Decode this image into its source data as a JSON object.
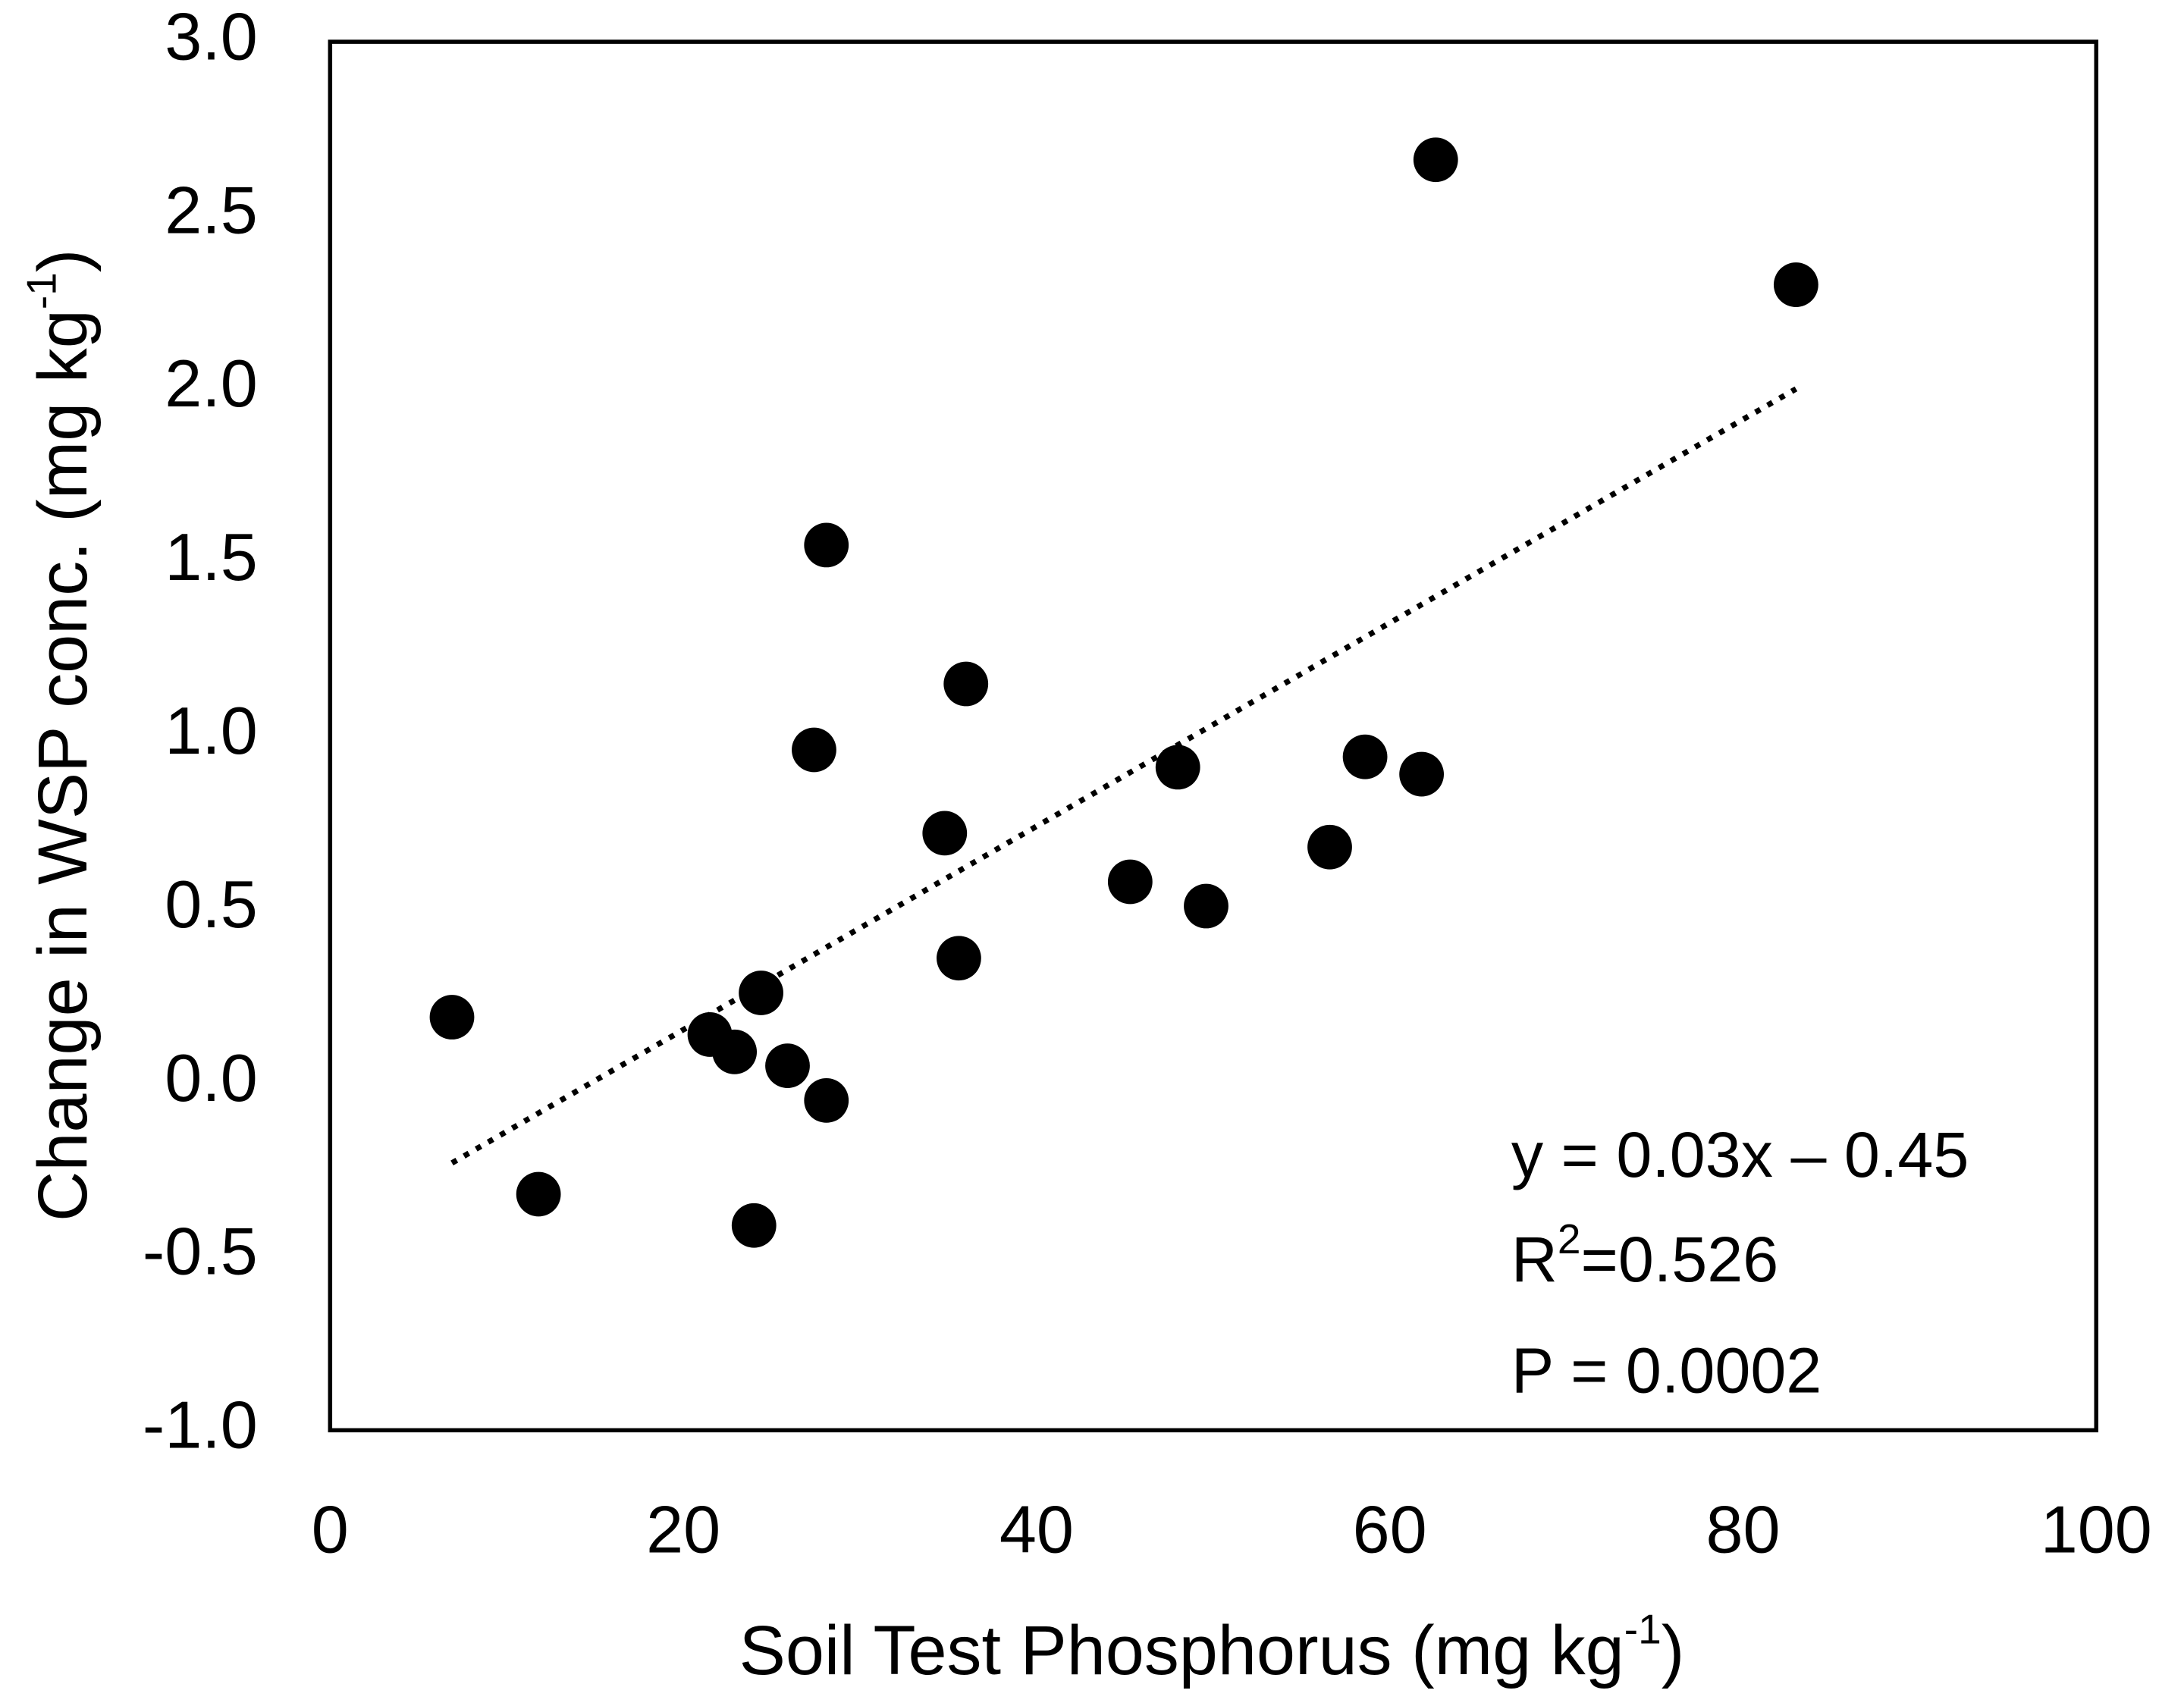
{
  "chart_data": {
    "type": "scatter",
    "x_label": [
      "Soil Test Phosphorus (mg kg",
      "-1",
      ")"
    ],
    "y_label": [
      "Change in WSP conc. (mg kg",
      "-1",
      ")"
    ],
    "x": [
      6.9,
      11.8,
      21.5,
      22.9,
      24.4,
      24.0,
      25.9,
      28.1,
      28.1,
      27.4,
      34.8,
      36.0,
      35.6,
      45.3,
      48.0,
      49.6,
      56.6,
      58.6,
      61.8,
      62.6,
      83.0
    ],
    "values": [
      0.19,
      -0.32,
      0.14,
      0.09,
      0.26,
      -0.41,
      0.05,
      -0.05,
      1.55,
      0.96,
      0.72,
      1.15,
      0.36,
      0.58,
      0.91,
      0.51,
      0.68,
      0.94,
      0.89,
      2.66,
      2.3
    ],
    "color": "#000000",
    "trendline": {
      "x": [
        6.9,
        83.0
      ],
      "y": [
        -0.23,
        2.0
      ]
    },
    "annotations": {
      "equation": "y = 0.03x – 0.45",
      "r2": [
        "R",
        "2",
        "=0.526"
      ],
      "p": "P = 0.0002"
    },
    "xlim": [
      0,
      100
    ],
    "xticks": [
      0,
      20,
      40,
      60,
      80,
      100
    ],
    "ylim": [
      -1,
      3
    ],
    "yticks": [
      {
        "value": -1,
        "label": "-1.0"
      },
      -0.5,
      {
        "value": 0,
        "label": "0.0"
      },
      0.5,
      {
        "value": 1,
        "label": "1.0"
      },
      1.5,
      {
        "value": 2,
        "label": "2.0"
      },
      2.5,
      {
        "value": 3,
        "label": "3.0"
      }
    ]
  }
}
